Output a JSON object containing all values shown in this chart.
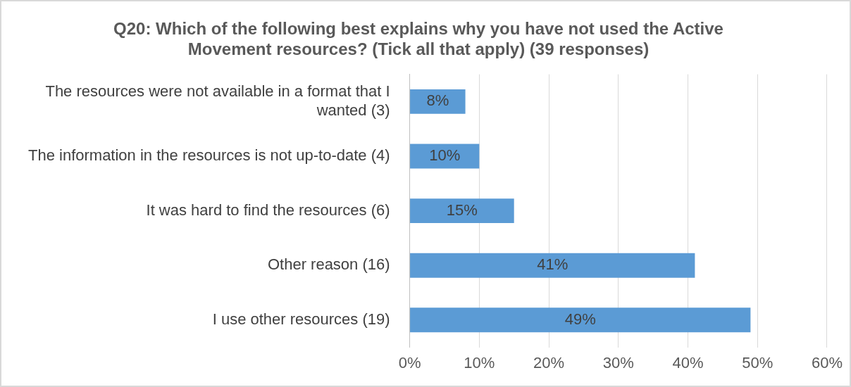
{
  "chart_data": {
    "type": "bar",
    "orientation": "horizontal",
    "title": "Q20: Which of the following best explains why you have not used the Active Movement resources? (Tick all that apply) (39 responses)",
    "categories": [
      "The resources were not available in a format that I wanted (3)",
      "The information in the resources is not up-to-date (4)",
      "It was hard to find the resources (6)",
      "Other reason (16)",
      "I use other resources (19)"
    ],
    "values": [
      8,
      10,
      15,
      41,
      49
    ],
    "color": "#5b9bd5",
    "value_labels": [
      "8%",
      "10%",
      "15%",
      "41%",
      "49%"
    ],
    "xlim": [
      0,
      60
    ],
    "xticks": [
      {
        "value": 0,
        "label": "0%"
      },
      {
        "value": 10,
        "label": "10%"
      },
      {
        "value": 20,
        "label": "20%"
      },
      {
        "value": 30,
        "label": "30%"
      },
      {
        "value": 40,
        "label": "40%"
      },
      {
        "value": 50,
        "label": "50%"
      },
      {
        "value": 60,
        "label": "60%"
      }
    ],
    "grid": "x"
  }
}
